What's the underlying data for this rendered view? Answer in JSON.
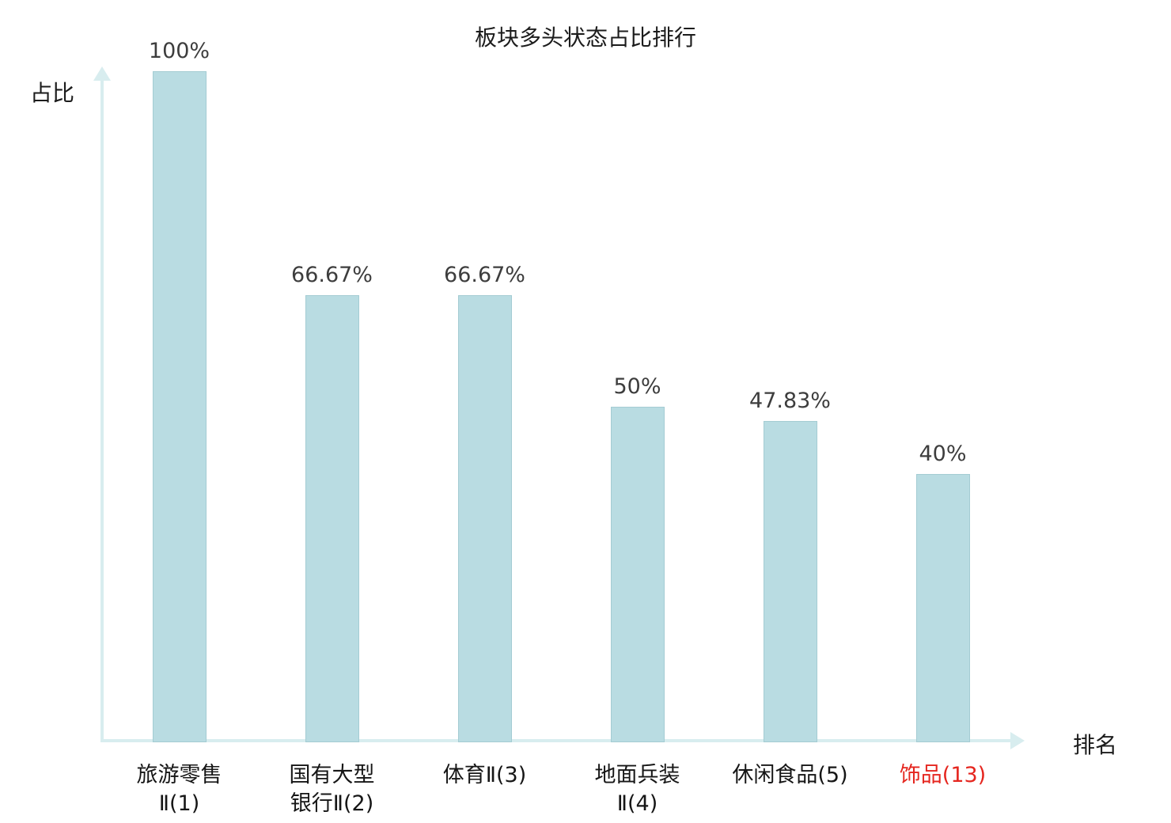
{
  "chart_data": {
    "type": "bar",
    "title": "板块多头状态占比排行",
    "xlabel": "排名",
    "ylabel": "占比",
    "ylim": [
      0,
      100
    ],
    "grid": false,
    "legend": false,
    "categories": [
      "旅游零售\nⅡ(1)",
      "国有大型\n银行Ⅱ(2)",
      "体育Ⅱ(3)",
      "地面兵装\nⅡ(4)",
      "休闲食品(5)",
      "饰品(13)"
    ],
    "values": [
      100,
      66.67,
      66.67,
      50,
      47.83,
      40
    ],
    "value_labels": [
      "100%",
      "66.67%",
      "66.67%",
      "50%",
      "47.83%",
      "40%"
    ],
    "highlight_index": 5,
    "bar_color": "#b9dce2",
    "bar_border_color": "#a4ccd3",
    "axis_color": "#d8edef",
    "value_label_color": "#3d3d3d",
    "category_label_color": "#161616",
    "highlight_label_color": "#e5261f"
  }
}
